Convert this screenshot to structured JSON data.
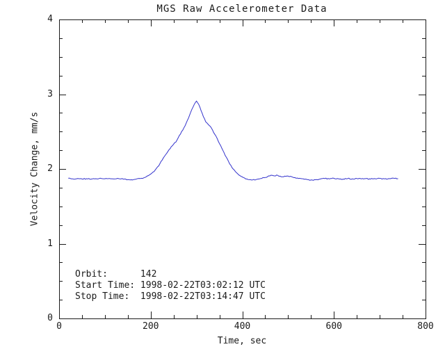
{
  "page": {
    "background": "#ffffff"
  },
  "chart_data": {
    "type": "line",
    "title": "MGS Raw Accelerometer Data",
    "xlabel": "Time, sec",
    "ylabel": "Velocity Change, mm/s",
    "xlim": [
      0,
      800
    ],
    "ylim": [
      0,
      4
    ],
    "x_ticks": [
      0,
      200,
      400,
      600,
      800
    ],
    "y_ticks": [
      0,
      1,
      2,
      3,
      4
    ],
    "x_minor_step": 50,
    "y_minor_step": 0.25,
    "grid": false,
    "legend": "none",
    "line_color": "#3333cc",
    "axis_color": "#1a1a1a",
    "noise_amplitude": 0.007,
    "series": [
      {
        "name": "velocity-change",
        "points": [
          [
            20,
            1.875
          ],
          [
            30,
            1.868
          ],
          [
            40,
            1.872
          ],
          [
            50,
            1.866
          ],
          [
            60,
            1.871
          ],
          [
            70,
            1.864
          ],
          [
            80,
            1.87
          ],
          [
            90,
            1.876
          ],
          [
            100,
            1.869
          ],
          [
            110,
            1.873
          ],
          [
            120,
            1.866
          ],
          [
            130,
            1.871
          ],
          [
            140,
            1.864
          ],
          [
            150,
            1.857
          ],
          [
            160,
            1.853
          ],
          [
            165,
            1.86
          ],
          [
            170,
            1.868
          ],
          [
            180,
            1.875
          ],
          [
            185,
            1.882
          ],
          [
            190,
            1.895
          ],
          [
            195,
            1.912
          ],
          [
            200,
            1.932
          ],
          [
            205,
            1.958
          ],
          [
            210,
            1.988
          ],
          [
            215,
            2.028
          ],
          [
            220,
            2.07
          ],
          [
            225,
            2.118
          ],
          [
            230,
            2.168
          ],
          [
            235,
            2.21
          ],
          [
            240,
            2.258
          ],
          [
            245,
            2.3
          ],
          [
            250,
            2.332
          ],
          [
            255,
            2.36
          ],
          [
            260,
            2.418
          ],
          [
            265,
            2.468
          ],
          [
            270,
            2.52
          ],
          [
            275,
            2.578
          ],
          [
            280,
            2.648
          ],
          [
            285,
            2.72
          ],
          [
            290,
            2.798
          ],
          [
            295,
            2.862
          ],
          [
            300,
            2.908
          ],
          [
            305,
            2.862
          ],
          [
            310,
            2.78
          ],
          [
            315,
            2.7
          ],
          [
            320,
            2.632
          ],
          [
            325,
            2.6
          ],
          [
            330,
            2.57
          ],
          [
            335,
            2.52
          ],
          [
            340,
            2.462
          ],
          [
            345,
            2.408
          ],
          [
            350,
            2.34
          ],
          [
            355,
            2.28
          ],
          [
            360,
            2.22
          ],
          [
            365,
            2.158
          ],
          [
            370,
            2.1
          ],
          [
            375,
            2.048
          ],
          [
            380,
            2.0
          ],
          [
            385,
            1.965
          ],
          [
            390,
            1.935
          ],
          [
            395,
            1.91
          ],
          [
            400,
            1.893
          ],
          [
            405,
            1.878
          ],
          [
            410,
            1.866
          ],
          [
            415,
            1.857
          ],
          [
            420,
            1.852
          ],
          [
            430,
            1.858
          ],
          [
            440,
            1.873
          ],
          [
            450,
            1.886
          ],
          [
            455,
            1.896
          ],
          [
            460,
            1.906
          ],
          [
            465,
            1.915
          ],
          [
            470,
            1.907
          ],
          [
            475,
            1.919
          ],
          [
            480,
            1.902
          ],
          [
            490,
            1.895
          ],
          [
            500,
            1.905
          ],
          [
            510,
            1.89
          ],
          [
            520,
            1.879
          ],
          [
            530,
            1.87
          ],
          [
            540,
            1.861
          ],
          [
            550,
            1.853
          ],
          [
            560,
            1.856
          ],
          [
            570,
            1.865
          ],
          [
            580,
            1.872
          ],
          [
            590,
            1.867
          ],
          [
            600,
            1.874
          ],
          [
            610,
            1.869
          ],
          [
            620,
            1.865
          ],
          [
            630,
            1.871
          ],
          [
            640,
            1.867
          ],
          [
            650,
            1.873
          ],
          [
            660,
            1.868
          ],
          [
            670,
            1.871
          ],
          [
            680,
            1.865
          ],
          [
            690,
            1.87
          ],
          [
            700,
            1.874
          ],
          [
            710,
            1.868
          ],
          [
            720,
            1.872
          ],
          [
            730,
            1.877
          ],
          [
            740,
            1.871
          ]
        ]
      }
    ],
    "annotations": [
      {
        "text": "Orbit:      142"
      },
      {
        "text": "Start Time: 1998-02-22T03:02:12 UTC"
      },
      {
        "text": "Stop Time:  1998-02-22T03:14:47 UTC"
      }
    ]
  }
}
